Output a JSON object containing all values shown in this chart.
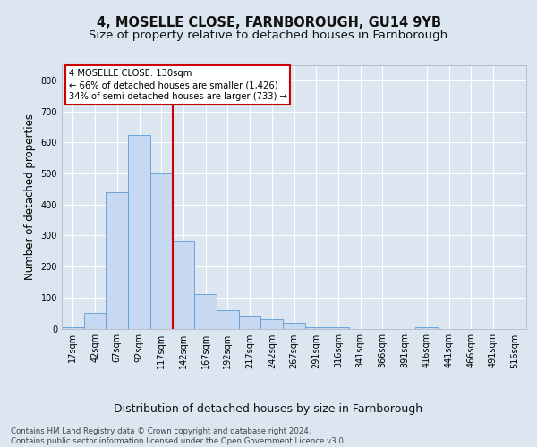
{
  "title_line1": "4, MOSELLE CLOSE, FARNBOROUGH, GU14 9YB",
  "title_line2": "Size of property relative to detached houses in Farnborough",
  "xlabel": "Distribution of detached houses by size in Farnborough",
  "ylabel": "Number of detached properties",
  "footnote": "Contains HM Land Registry data © Crown copyright and database right 2024.\nContains public sector information licensed under the Open Government Licence v3.0.",
  "bin_labels": [
    "17sqm",
    "42sqm",
    "67sqm",
    "92sqm",
    "117sqm",
    "142sqm",
    "167sqm",
    "192sqm",
    "217sqm",
    "242sqm",
    "267sqm",
    "291sqm",
    "316sqm",
    "341sqm",
    "366sqm",
    "391sqm",
    "416sqm",
    "441sqm",
    "466sqm",
    "491sqm",
    "516sqm"
  ],
  "bar_values": [
    5,
    50,
    440,
    625,
    500,
    280,
    110,
    60,
    40,
    30,
    20,
    5,
    5,
    0,
    0,
    0,
    5,
    0,
    0,
    0,
    0
  ],
  "bar_color": "#c6d9f0",
  "bar_edge_color": "#5b9bd5",
  "vline_color": "#cc0000",
  "annotation_text": "4 MOSELLE CLOSE: 130sqm\n← 66% of detached houses are smaller (1,426)\n34% of semi-detached houses are larger (733) →",
  "annotation_box_color": "#ffffff",
  "annotation_box_edge": "#cc0000",
  "bg_color": "#dce6f1",
  "plot_bg_color": "#dce6f1",
  "ylim": [
    0,
    850
  ],
  "yticks": [
    0,
    100,
    200,
    300,
    400,
    500,
    600,
    700,
    800
  ],
  "grid_color": "#ffffff",
  "title_fontsize": 10.5,
  "subtitle_fontsize": 9.5,
  "axis_label_fontsize": 8.5,
  "tick_fontsize": 7,
  "footnote_fontsize": 6.2
}
